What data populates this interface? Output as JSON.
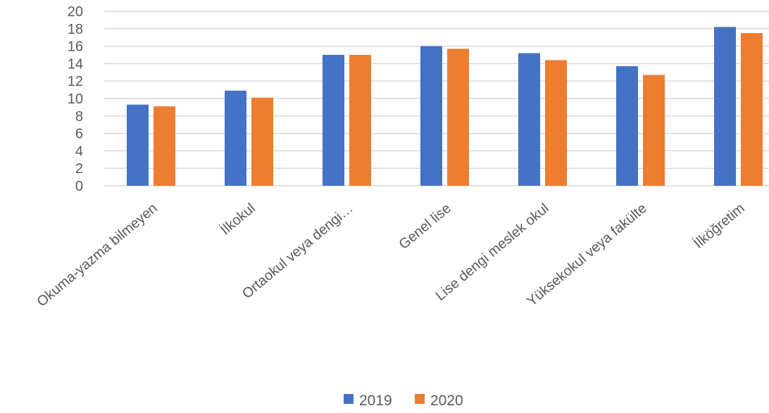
{
  "chart_data": {
    "type": "bar",
    "categories": [
      "Okuma-yazma bilmeyen",
      "İlkokul",
      "Ortaokul veya dengi…",
      "Genel lise",
      "Lise dengi meslek okul",
      "Yüksekokul veya fakülte",
      "İlköğretim"
    ],
    "series": [
      {
        "name": "2019",
        "color": "#4472c4",
        "values": [
          9.3,
          10.9,
          15.0,
          16.0,
          15.2,
          13.7,
          18.2
        ]
      },
      {
        "name": "2020",
        "color": "#ed7d31",
        "values": [
          9.1,
          10.1,
          15.0,
          15.7,
          14.4,
          12.7,
          17.5
        ]
      }
    ],
    "yticks": [
      "0",
      "2",
      "4",
      "6",
      "8",
      "10",
      "12",
      "14",
      "16",
      "18",
      "20"
    ],
    "ylim": [
      0,
      20
    ],
    "grid": true,
    "legend_position": "bottom"
  }
}
